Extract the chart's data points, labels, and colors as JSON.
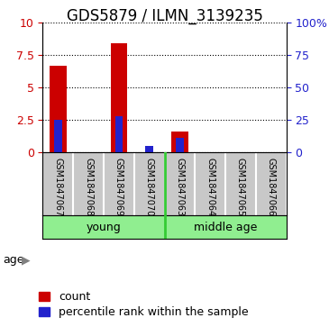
{
  "title": "GDS5879 / ILMN_3139235",
  "samples": [
    "GSM1847067",
    "GSM1847068",
    "GSM1847069",
    "GSM1847070",
    "GSM1847063",
    "GSM1847064",
    "GSM1847065",
    "GSM1847066"
  ],
  "red_values": [
    6.7,
    0.0,
    8.4,
    0.0,
    1.6,
    0.0,
    0.0,
    0.0
  ],
  "blue_values_pct": [
    25.0,
    0.0,
    28.0,
    5.0,
    11.0,
    0.0,
    0.0,
    0.0
  ],
  "groups": [
    {
      "label": "young",
      "indices": [
        0,
        1,
        2,
        3
      ]
    },
    {
      "label": "middle age",
      "indices": [
        4,
        5,
        6,
        7
      ]
    }
  ],
  "group_boundary": 3.5,
  "ylim_left": [
    0,
    10
  ],
  "ylim_right": [
    0,
    100
  ],
  "yticks_left": [
    0,
    2.5,
    5.0,
    7.5,
    10.0
  ],
  "yticklabels_left": [
    "0",
    "2.5",
    "5",
    "7.5",
    "10"
  ],
  "yticks_right": [
    0,
    25,
    50,
    75,
    100
  ],
  "yticklabels_right": [
    "0",
    "25",
    "50",
    "75",
    "100%"
  ],
  "bar_width": 0.55,
  "blue_bar_width": 0.25,
  "red_color": "#CC0000",
  "blue_color": "#2222CC",
  "label_area_color": "#C8C8C8",
  "group_area_color": "#90EE90",
  "group_divider_color": "#33CC33",
  "age_label": "age",
  "legend_count": "count",
  "legend_pct": "percentile rank within the sample",
  "title_fontsize": 12,
  "axis_tick_fontsize": 9,
  "label_fontsize": 7,
  "group_fontsize": 9,
  "legend_fontsize": 9
}
